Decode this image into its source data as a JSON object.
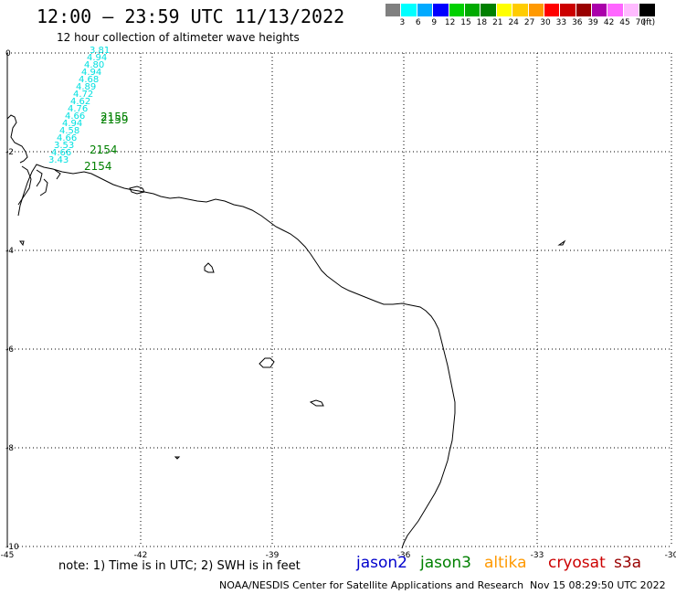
{
  "header": {
    "title": "12:00 – 23:59 UTC 11/13/2022",
    "subtitle": "12 hour collection of altimeter wave heights"
  },
  "legend": {
    "colors": [
      "#808080",
      "#00ffff",
      "#00aaff",
      "#0000ff",
      "#00d000",
      "#00aa00",
      "#008000",
      "#ffff00",
      "#ffcc00",
      "#ff9900",
      "#ff0000",
      "#cc0000",
      "#990000",
      "#aa00aa",
      "#ff66ff",
      "#ffbbff",
      "#000000"
    ],
    "labels": [
      "3",
      "6",
      "9",
      "12",
      "15",
      "18",
      "21",
      "24",
      "27",
      "30",
      "33",
      "36",
      "39",
      "42",
      "45",
      "70",
      "(ft)"
    ]
  },
  "map": {
    "lon_ticks": [
      "-45",
      "-42",
      "-39",
      "-36",
      "-33",
      "-30"
    ],
    "lat_ticks": [
      "0",
      "-2",
      "-4",
      "-6",
      "-8",
      "-10"
    ],
    "wave_heights": [
      "3.81",
      "4.94",
      "4.80",
      "4.94",
      "4.68",
      "4.89",
      "4.72",
      "4.62",
      "4.76",
      "4.66",
      "4.94",
      "4.58",
      "4.66",
      "3.53",
      "4.66",
      "3.43"
    ],
    "times": [
      "2155",
      "2159",
      "2154",
      "2154"
    ]
  },
  "footer": {
    "note": "note: 1) Time is in UTC; 2) SWH is in feet",
    "satellites": [
      {
        "name": "jason2",
        "color": "#0000cc"
      },
      {
        "name": "jason3",
        "color": "#008000"
      },
      {
        "name": "altika",
        "color": "#ff9900"
      },
      {
        "name": "cryosat",
        "color": "#cc0000"
      },
      {
        "name": "s3a",
        "color": "#990000"
      }
    ],
    "credit": "NOAA/NESDIS Center for Satellite Applications and Research",
    "timestamp": "Nov 15 08:29:50 UTC 2022"
  }
}
